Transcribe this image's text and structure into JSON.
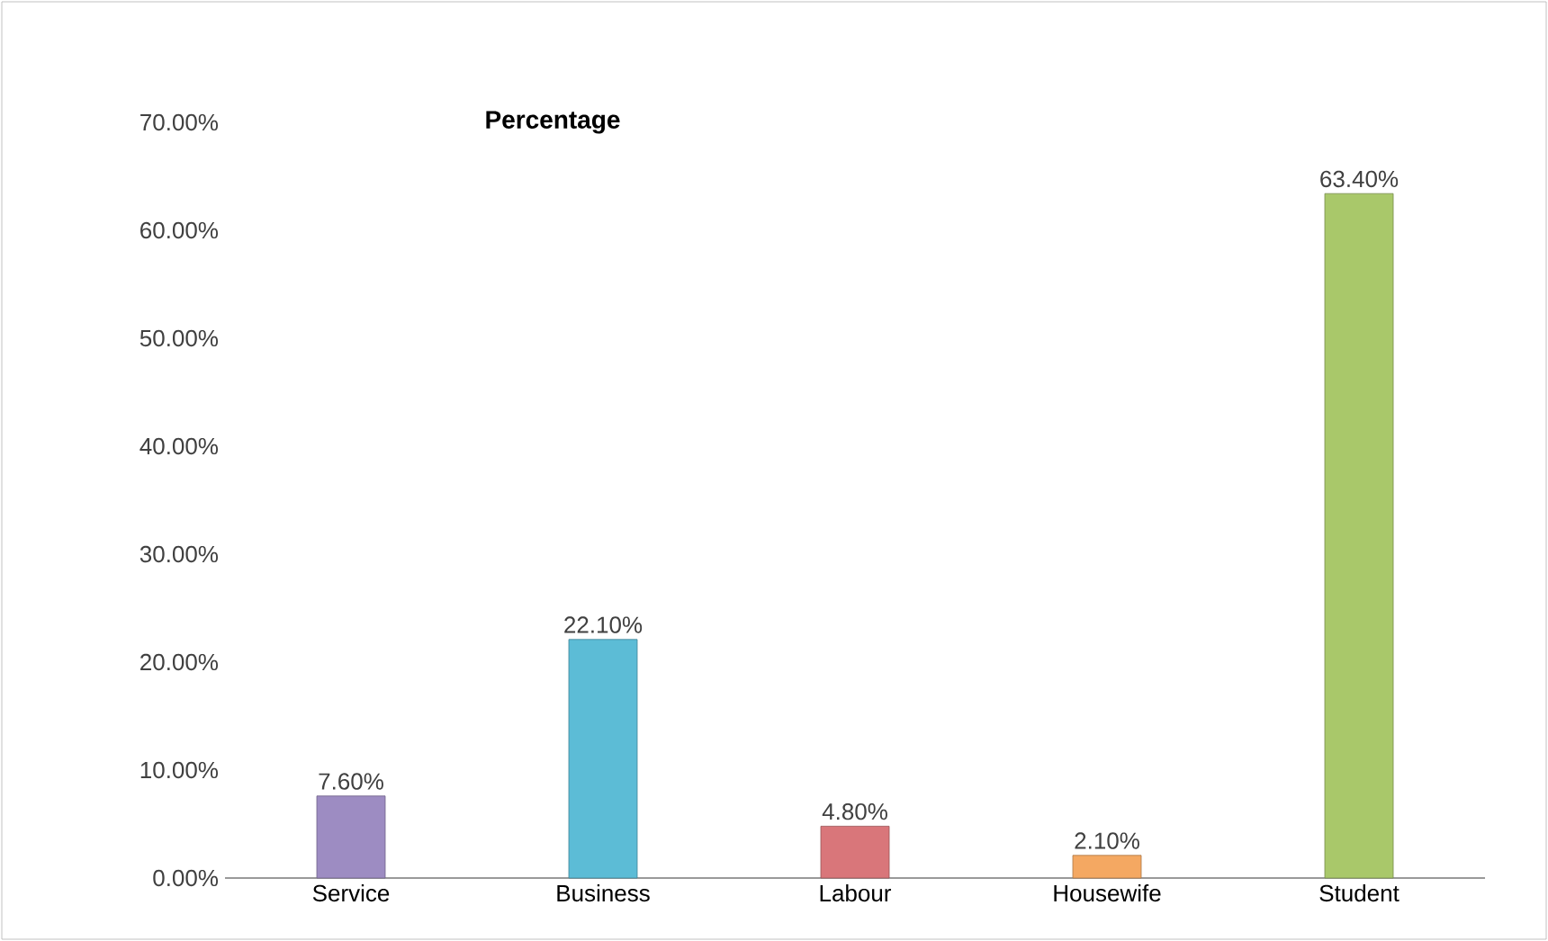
{
  "chart_data": {
    "type": "bar",
    "title": "Percentage",
    "categories": [
      "Service",
      "Business",
      "Labour",
      "Housewife",
      "Student"
    ],
    "values": [
      7.6,
      22.1,
      4.8,
      2.1,
      63.4
    ],
    "colors": [
      "#9d8cc2",
      "#5cbcd6",
      "#d9767a",
      "#f4a862",
      "#a9c86a"
    ],
    "value_labels": [
      "7.60%",
      "22.10%",
      "4.80%",
      "2.10%",
      "63.40%"
    ],
    "ylim": [
      0,
      70
    ],
    "yticks": [
      {
        "value": 0,
        "label": "0.00%"
      },
      {
        "value": 10,
        "label": "10.00%"
      },
      {
        "value": 20,
        "label": "20.00%"
      },
      {
        "value": 30,
        "label": "30.00%"
      },
      {
        "value": 40,
        "label": "40.00%"
      },
      {
        "value": 50,
        "label": "50.00%"
      },
      {
        "value": 60,
        "label": "60.00%"
      },
      {
        "value": 70,
        "label": "70.00%"
      }
    ]
  }
}
